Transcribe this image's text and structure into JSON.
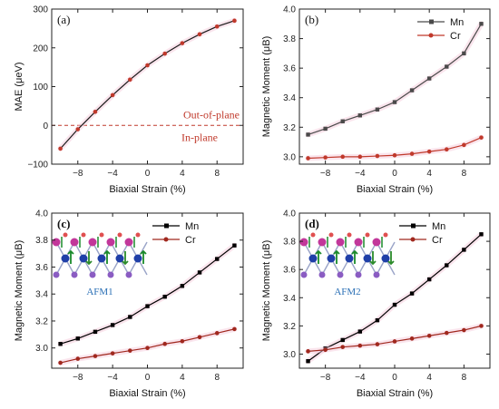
{
  "colors": {
    "mae": "#1a1a1a",
    "mae_marker": "#c0392b",
    "mn_b": "#4a4a4a",
    "cr_b": "#c0392b",
    "mn_cd": "#000000",
    "cr_cd": "#a0281e",
    "highlight": "#f4c6d8",
    "dashed": "#c0392b",
    "afm_text": "#2a6fb5"
  },
  "chart_data": [
    {
      "panel": "(a)",
      "type": "line",
      "xlabel": "Biaxial Strain (%)",
      "ylabel": "MAE (μeV)",
      "xlim": [
        -11,
        11
      ],
      "ylim": [
        -100,
        300
      ],
      "xticks": [
        "-8",
        "-4",
        "0",
        "4",
        "8"
      ],
      "yticks": [
        "-100",
        "0",
        "100",
        "200",
        "300"
      ],
      "annotations": [
        "Out-of-plane",
        "In-plane"
      ],
      "x": [
        -10,
        -8,
        -6,
        -4,
        -2,
        0,
        2,
        4,
        6,
        8,
        10
      ],
      "series": [
        {
          "values": [
            -60,
            -10,
            35,
            78,
            118,
            155,
            185,
            212,
            235,
            255,
            270
          ]
        }
      ]
    },
    {
      "panel": "(b)",
      "type": "line",
      "xlabel": "Biaxial Strain (%)",
      "ylabel": "Magnetic Moment (μB)",
      "xlim": [
        -11,
        11
      ],
      "ylim": [
        2.95,
        4.0
      ],
      "xticks": [
        "-8",
        "-4",
        "0",
        "4",
        "8"
      ],
      "yticks": [
        "3.0",
        "3.2",
        "3.4",
        "3.6",
        "3.8",
        "4.0"
      ],
      "legend": "top-right",
      "x": [
        -10,
        -8,
        -6,
        -4,
        -2,
        0,
        2,
        4,
        6,
        8,
        10
      ],
      "series": [
        {
          "name": "Mn",
          "values": [
            3.15,
            3.19,
            3.24,
            3.28,
            3.32,
            3.37,
            3.45,
            3.53,
            3.61,
            3.7,
            3.9
          ]
        },
        {
          "name": "Cr",
          "values": [
            2.99,
            2.995,
            3.0,
            3.0,
            3.005,
            3.01,
            3.02,
            3.035,
            3.05,
            3.08,
            3.13
          ]
        }
      ]
    },
    {
      "panel": "(c)",
      "type": "line",
      "xlabel": "Biaxial Strain (%)",
      "ylabel": "Magnetic Moment (μB)",
      "xlim": [
        -11,
        11
      ],
      "ylim": [
        2.85,
        4.0
      ],
      "xticks": [
        "-8",
        "-4",
        "0",
        "4",
        "8"
      ],
      "yticks": [
        "3.0",
        "3.2",
        "3.4",
        "3.6",
        "3.8",
        "4.0"
      ],
      "legend": "top-right",
      "inset_label": "AFM1",
      "x": [
        -10,
        -8,
        -6,
        -4,
        -2,
        0,
        2,
        4,
        6,
        8,
        10
      ],
      "series": [
        {
          "name": "Mn",
          "values": [
            3.03,
            3.07,
            3.12,
            3.17,
            3.23,
            3.31,
            3.38,
            3.46,
            3.56,
            3.66,
            3.76
          ]
        },
        {
          "name": "Cr",
          "values": [
            2.89,
            2.92,
            2.94,
            2.96,
            2.98,
            3.0,
            3.03,
            3.05,
            3.08,
            3.11,
            3.14
          ]
        }
      ]
    },
    {
      "panel": "(d)",
      "type": "line",
      "xlabel": "Biaxial Strain (%)",
      "ylabel": "Magnetic Moment (μB)",
      "xlim": [
        -11,
        11
      ],
      "ylim": [
        2.9,
        4.0
      ],
      "xticks": [
        "-8",
        "-4",
        "0",
        "4",
        "8"
      ],
      "yticks": [
        "3.0",
        "3.2",
        "3.4",
        "3.6",
        "3.8",
        "4.0"
      ],
      "legend": "top-right",
      "inset_label": "AFM2",
      "x": [
        -10,
        -8,
        -6,
        -4,
        -2,
        0,
        2,
        4,
        6,
        8,
        10
      ],
      "series": [
        {
          "name": "Mn",
          "values": [
            2.95,
            3.04,
            3.1,
            3.16,
            3.24,
            3.35,
            3.43,
            3.53,
            3.63,
            3.74,
            3.85
          ]
        },
        {
          "name": "Cr",
          "values": [
            3.02,
            3.03,
            3.05,
            3.06,
            3.07,
            3.09,
            3.11,
            3.13,
            3.15,
            3.17,
            3.2
          ]
        }
      ]
    }
  ]
}
